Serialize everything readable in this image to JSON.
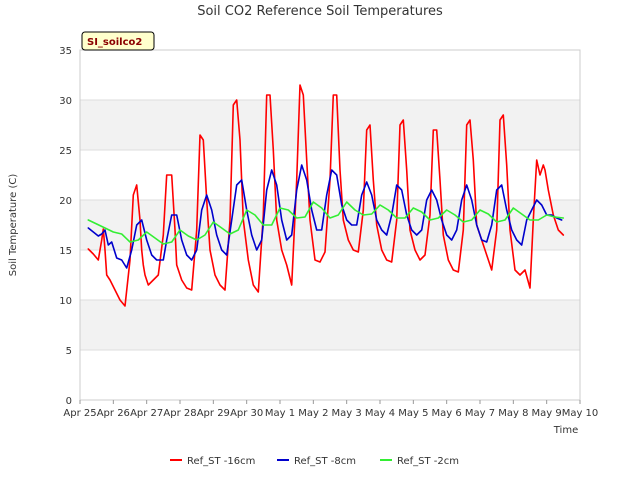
{
  "chart_data": {
    "type": "line",
    "title": "Soil CO2 Reference Soil Temperatures",
    "badge": "SI_soilco2",
    "xlabel": "Time",
    "ylabel": "Soil Temperature (C)",
    "ylim": [
      0,
      35
    ],
    "yticks": [
      0,
      5,
      10,
      15,
      20,
      25,
      30,
      35
    ],
    "xlim": [
      0,
      15
    ],
    "xtick_labels": [
      "Apr 25",
      "Apr 26",
      "Apr 27",
      "Apr 28",
      "Apr 29",
      "Apr 30",
      "May 1",
      "May 2",
      "May 3",
      "May 4",
      "May 5",
      "May 6",
      "May 7",
      "May 8",
      "May 9",
      "May 10"
    ],
    "x_units": "days since Apr 25",
    "grid": true,
    "legend_position": "bottom",
    "colors": {
      "band": "#f2f2f2",
      "grid": "#dddddd"
    },
    "series": [
      {
        "name": "Ref_ST -16cm",
        "color": "#ff0000",
        "x": [
          0.25,
          0.4,
          0.55,
          0.65,
          0.7,
          0.75,
          0.8,
          0.9,
          1.05,
          1.2,
          1.35,
          1.5,
          1.6,
          1.7,
          1.8,
          1.85,
          1.9,
          1.95,
          2.05,
          2.2,
          2.35,
          2.5,
          2.6,
          2.75,
          2.85,
          2.9,
          3.05,
          3.2,
          3.35,
          3.5,
          3.6,
          3.7,
          3.8,
          3.9,
          4.05,
          4.2,
          4.35,
          4.5,
          4.6,
          4.7,
          4.8,
          4.9,
          5.05,
          5.2,
          5.35,
          5.5,
          5.6,
          5.7,
          5.8,
          5.9,
          6.05,
          6.2,
          6.35,
          6.5,
          6.6,
          6.7,
          6.8,
          6.9,
          7.05,
          7.2,
          7.35,
          7.5,
          7.6,
          7.7,
          7.8,
          7.9,
          8.05,
          8.2,
          8.35,
          8.5,
          8.6,
          8.7,
          8.8,
          8.9,
          9.05,
          9.2,
          9.35,
          9.5,
          9.6,
          9.7,
          9.8,
          9.9,
          10.05,
          10.2,
          10.35,
          10.5,
          10.6,
          10.7,
          10.8,
          10.9,
          11.05,
          11.2,
          11.35,
          11.5,
          11.6,
          11.7,
          11.8,
          11.9,
          12.05,
          12.2,
          12.35,
          12.5,
          12.6,
          12.7,
          12.8,
          12.9,
          13.05,
          13.2,
          13.35,
          13.5,
          13.6,
          13.7,
          13.8,
          13.9,
          13.95,
          14.05,
          14.2,
          14.35,
          14.5
        ],
        "y": [
          15.1,
          14.6,
          14.0,
          16.0,
          17.1,
          15.0,
          12.5,
          12.0,
          11.0,
          10.0,
          9.4,
          14.0,
          20.5,
          21.5,
          18.0,
          15.0,
          13.5,
          12.5,
          11.5,
          12.0,
          12.5,
          16.5,
          22.5,
          22.5,
          17.0,
          13.5,
          12.0,
          11.2,
          11.0,
          17.0,
          26.5,
          26.0,
          20.0,
          15.0,
          12.5,
          11.5,
          11.0,
          18.0,
          29.5,
          30.0,
          26.0,
          18.0,
          14.0,
          11.5,
          10.8,
          18.5,
          30.5,
          30.5,
          25.0,
          18.0,
          15.0,
          13.5,
          11.5,
          22.0,
          31.5,
          30.5,
          24.0,
          18.0,
          14.0,
          13.8,
          14.8,
          22.0,
          30.5,
          30.5,
          23.0,
          18.0,
          16.0,
          15.0,
          14.8,
          19.0,
          27.0,
          27.5,
          22.0,
          17.5,
          15.0,
          14.0,
          13.8,
          18.0,
          27.5,
          28.0,
          23.0,
          17.0,
          15.0,
          14.0,
          14.5,
          18.5,
          27.0,
          27.0,
          22.0,
          16.5,
          14.0,
          13.0,
          12.8,
          17.0,
          27.5,
          28.0,
          24.0,
          17.5,
          16.0,
          14.5,
          13.0,
          17.0,
          28.0,
          28.5,
          23.5,
          17.0,
          13.0,
          12.5,
          13.0,
          11.2,
          18.0,
          24.0,
          22.5,
          23.5,
          23.0,
          21.0,
          18.5,
          17.0,
          16.5
        ]
      },
      {
        "name": "Ref_ST -8cm",
        "color": "#0000cc",
        "x": [
          0.25,
          0.4,
          0.55,
          0.65,
          0.75,
          0.85,
          0.95,
          1.1,
          1.25,
          1.4,
          1.55,
          1.7,
          1.85,
          2.0,
          2.15,
          2.3,
          2.5,
          2.6,
          2.75,
          2.9,
          3.05,
          3.2,
          3.35,
          3.5,
          3.65,
          3.8,
          3.95,
          4.1,
          4.25,
          4.4,
          4.55,
          4.7,
          4.85,
          5.0,
          5.15,
          5.3,
          5.45,
          5.6,
          5.75,
          5.9,
          6.05,
          6.2,
          6.35,
          6.5,
          6.65,
          6.8,
          6.95,
          7.1,
          7.25,
          7.4,
          7.55,
          7.7,
          7.85,
          8.0,
          8.15,
          8.3,
          8.45,
          8.6,
          8.75,
          8.9,
          9.05,
          9.2,
          9.35,
          9.5,
          9.65,
          9.8,
          9.95,
          10.1,
          10.25,
          10.4,
          10.55,
          10.7,
          10.85,
          11.0,
          11.15,
          11.3,
          11.45,
          11.6,
          11.75,
          11.9,
          12.05,
          12.2,
          12.35,
          12.5,
          12.65,
          12.8,
          12.95,
          13.1,
          13.25,
          13.4,
          13.55,
          13.7,
          13.85,
          14.0,
          14.15,
          14.3,
          14.45
        ],
        "y": [
          17.2,
          16.8,
          16.4,
          16.6,
          17.0,
          15.5,
          15.8,
          14.2,
          14.0,
          13.2,
          15.0,
          17.5,
          18.0,
          16.0,
          14.5,
          14.0,
          14.0,
          16.0,
          18.5,
          18.5,
          16.0,
          14.5,
          14.0,
          15.0,
          19.0,
          20.5,
          19.0,
          16.5,
          15.0,
          14.5,
          18.0,
          21.5,
          22.0,
          19.0,
          16.5,
          15.0,
          16.0,
          21.0,
          23.0,
          21.5,
          18.0,
          16.0,
          16.5,
          21.0,
          23.5,
          22.0,
          19.0,
          17.0,
          17.0,
          20.5,
          23.0,
          22.5,
          19.5,
          18.0,
          17.5,
          17.5,
          20.5,
          21.8,
          20.5,
          18.0,
          17.0,
          16.5,
          18.5,
          21.5,
          21.0,
          18.5,
          17.0,
          16.5,
          17.0,
          20.0,
          21.0,
          20.0,
          18.0,
          16.5,
          16.0,
          17.0,
          20.0,
          21.5,
          20.0,
          17.5,
          16.0,
          15.8,
          17.5,
          21.0,
          21.5,
          19.0,
          17.0,
          16.0,
          15.5,
          18.0,
          19.0,
          20.0,
          19.5,
          18.5,
          18.5,
          18.2,
          18.0
        ]
      },
      {
        "name": "Ref_ST -2cm",
        "color": "#33ee33",
        "x": [
          0.25,
          0.5,
          0.75,
          1.0,
          1.25,
          1.5,
          1.75,
          2.0,
          2.25,
          2.5,
          2.75,
          3.0,
          3.25,
          3.5,
          3.75,
          4.0,
          4.25,
          4.5,
          4.75,
          5.0,
          5.25,
          5.5,
          5.75,
          6.0,
          6.25,
          6.5,
          6.75,
          7.0,
          7.25,
          7.5,
          7.75,
          8.0,
          8.25,
          8.5,
          8.75,
          9.0,
          9.25,
          9.5,
          9.75,
          10.0,
          10.25,
          10.5,
          10.75,
          11.0,
          11.25,
          11.5,
          11.75,
          12.0,
          12.25,
          12.5,
          12.75,
          13.0,
          13.25,
          13.5,
          13.75,
          14.0,
          14.25,
          14.5
        ],
        "y": [
          18.0,
          17.6,
          17.2,
          16.8,
          16.6,
          15.8,
          16.0,
          16.8,
          16.2,
          15.6,
          15.8,
          17.0,
          16.4,
          16.0,
          16.5,
          17.8,
          17.2,
          16.6,
          17.0,
          19.0,
          18.5,
          17.5,
          17.5,
          19.2,
          19.0,
          18.2,
          18.3,
          19.8,
          19.2,
          18.2,
          18.5,
          19.8,
          19.0,
          18.5,
          18.6,
          19.5,
          19.0,
          18.2,
          18.2,
          19.2,
          18.8,
          18.0,
          18.2,
          19.0,
          18.5,
          17.8,
          18.0,
          19.0,
          18.6,
          17.8,
          18.0,
          19.2,
          18.6,
          18.0,
          18.0,
          18.5,
          18.3,
          18.2
        ]
      }
    ]
  }
}
